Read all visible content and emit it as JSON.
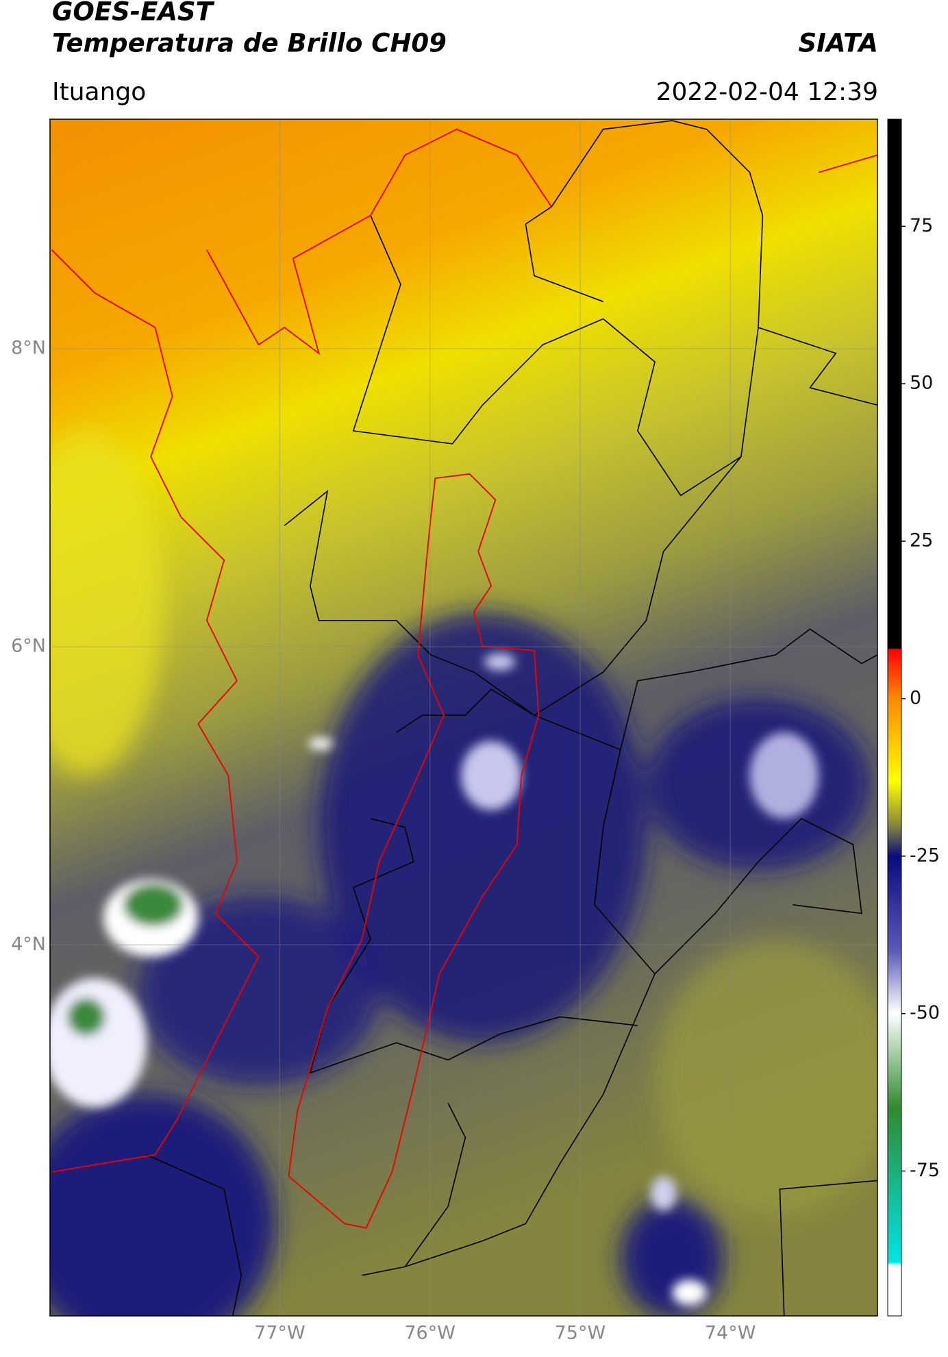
{
  "chart_data": {
    "type": "map",
    "title": "GOES-EAST",
    "subtitle": "Temperatura de Brillo CH09",
    "source": "SIATA",
    "region": "Ituango",
    "datetime": "2022-02-04 12:39",
    "xlim": [
      -78.53,
      -73.02
    ],
    "ylim": [
      1.51,
      9.54
    ],
    "xticks": [
      {
        "value": -77,
        "label": "77°W"
      },
      {
        "value": -76,
        "label": "76°W"
      },
      {
        "value": -75,
        "label": "75°W"
      },
      {
        "value": -74,
        "label": "74°W"
      }
    ],
    "yticks": [
      {
        "value": 8,
        "label": "8°N"
      },
      {
        "value": 6,
        "label": "6°N"
      },
      {
        "value": 4,
        "label": "4°N"
      }
    ],
    "grid": true,
    "colorbar": {
      "lim": [
        -98,
        92
      ],
      "ticks": [
        75,
        50,
        25,
        0,
        -25,
        -50,
        -75
      ]
    }
  }
}
